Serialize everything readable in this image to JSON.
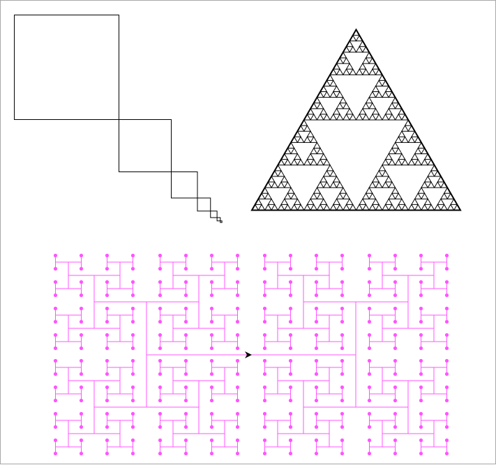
{
  "scene": {
    "background": "#ffffff",
    "border_color": "#a8a8a8"
  },
  "figures": [
    {
      "name": "nested-squares-diagonal",
      "kind": "square-chain",
      "count": 7,
      "ratio": 0.5,
      "stroke": "#000000"
    },
    {
      "name": "sierpinski-triangle",
      "kind": "sierpinski",
      "depth": 5,
      "stroke": "#000000"
    },
    {
      "name": "h-tree-fractal",
      "kind": "h-tree",
      "depth": 8,
      "stroke": "#ff55ff",
      "node_color": "#ff55ff",
      "turtle_icon": "turtle-cursor-icon",
      "turtle_color": "#000000"
    }
  ]
}
